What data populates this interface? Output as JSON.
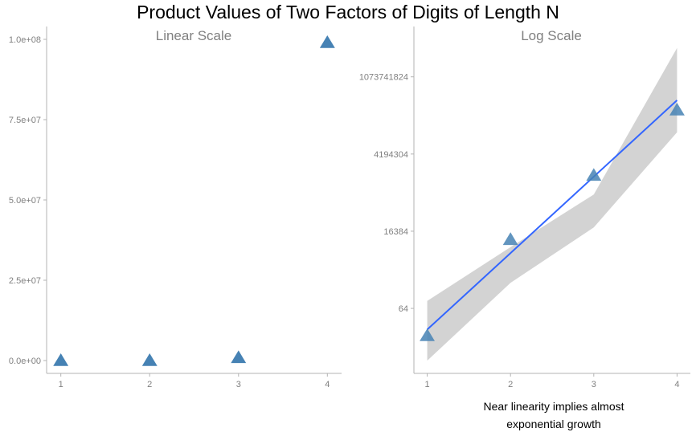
{
  "title": "Product Values of Two Factors of Digits of Length N",
  "colors": {
    "point": "#4682B4",
    "fit_line": "#3366FF",
    "ribbon": "#D3D3D3",
    "axis": "#B3B3B3",
    "text": "#808080"
  },
  "chart_data": [
    {
      "type": "scatter",
      "title": "Linear Scale",
      "x": [
        1,
        2,
        3,
        4
      ],
      "y": [
        9,
        9009,
        906609,
        99000099
      ],
      "xlim": [
        0.84,
        4.16
      ],
      "ylim": [
        -4000000,
        104000000
      ],
      "x_ticks": [
        1,
        2,
        3,
        4
      ],
      "x_tick_labels": [
        "1",
        "2",
        "3",
        "4"
      ],
      "y_ticks": [
        0,
        25000000,
        50000000,
        75000000,
        100000000
      ],
      "y_tick_labels": [
        "0.0e+00",
        "2.5e+07",
        "5.0e+07",
        "7.5e+07",
        "1.0e+08"
      ],
      "y_scale": "linear",
      "marker": "triangle",
      "grid": false
    },
    {
      "type": "scatter",
      "title": "Log Scale",
      "x": [
        1,
        2,
        3,
        4
      ],
      "y": [
        9,
        9009,
        906609,
        99000099
      ],
      "xlim": [
        0.84,
        4.16
      ],
      "ylim": [
        0.6,
        40000000000
      ],
      "x_ticks": [
        1,
        2,
        3,
        4
      ],
      "x_tick_labels": [
        "1",
        "2",
        "3",
        "4"
      ],
      "y_ticks": [
        64,
        16384,
        4194304,
        1073741824
      ],
      "y_tick_labels": [
        "64",
        "16384",
        "4194304",
        "1073741824"
      ],
      "y_scale": "log",
      "marker": "triangle",
      "grid": false,
      "fit_line": {
        "x": [
          1,
          4
        ],
        "y": [
          14,
          200000000
        ]
      },
      "confidence_band": {
        "x": [
          1,
          2,
          3,
          4
        ],
        "upper": [
          110,
          5200,
          230000,
          8500000000
        ],
        "lower": [
          1.5,
          400,
          21500,
          20000000
        ]
      },
      "caption": [
        "Near linearity implies almost",
        "exponential growth"
      ]
    }
  ]
}
